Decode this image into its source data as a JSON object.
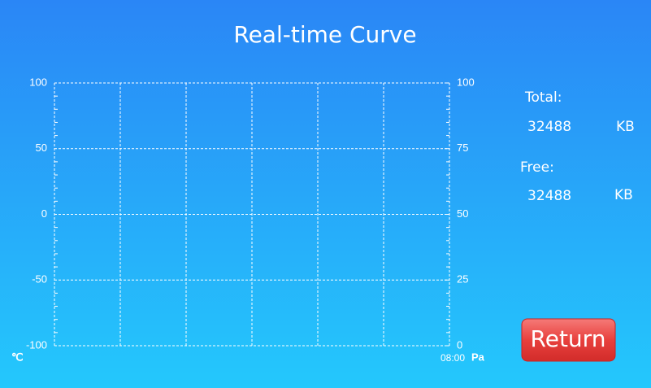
{
  "header": {
    "title": "Real-time Curve"
  },
  "chart_data": {
    "type": "line",
    "series": [],
    "ylim": [
      -100,
      100
    ],
    "yticks": [
      -100,
      -50,
      0,
      50,
      100
    ],
    "ylabel": "℃",
    "y2lim": [
      0,
      100
    ],
    "y2ticks": [
      0,
      25,
      50,
      75,
      100
    ],
    "y2label": "Pa",
    "x_end_label": "08:00",
    "grid": true,
    "x_divisions": 6,
    "minor_ticks": 5
  },
  "panel": {
    "total_label": "Total:",
    "total_value": "32488",
    "total_unit": "KB",
    "free_label": "Free:",
    "free_value": "32488",
    "free_unit": "KB"
  },
  "button": {
    "label": "Return"
  }
}
